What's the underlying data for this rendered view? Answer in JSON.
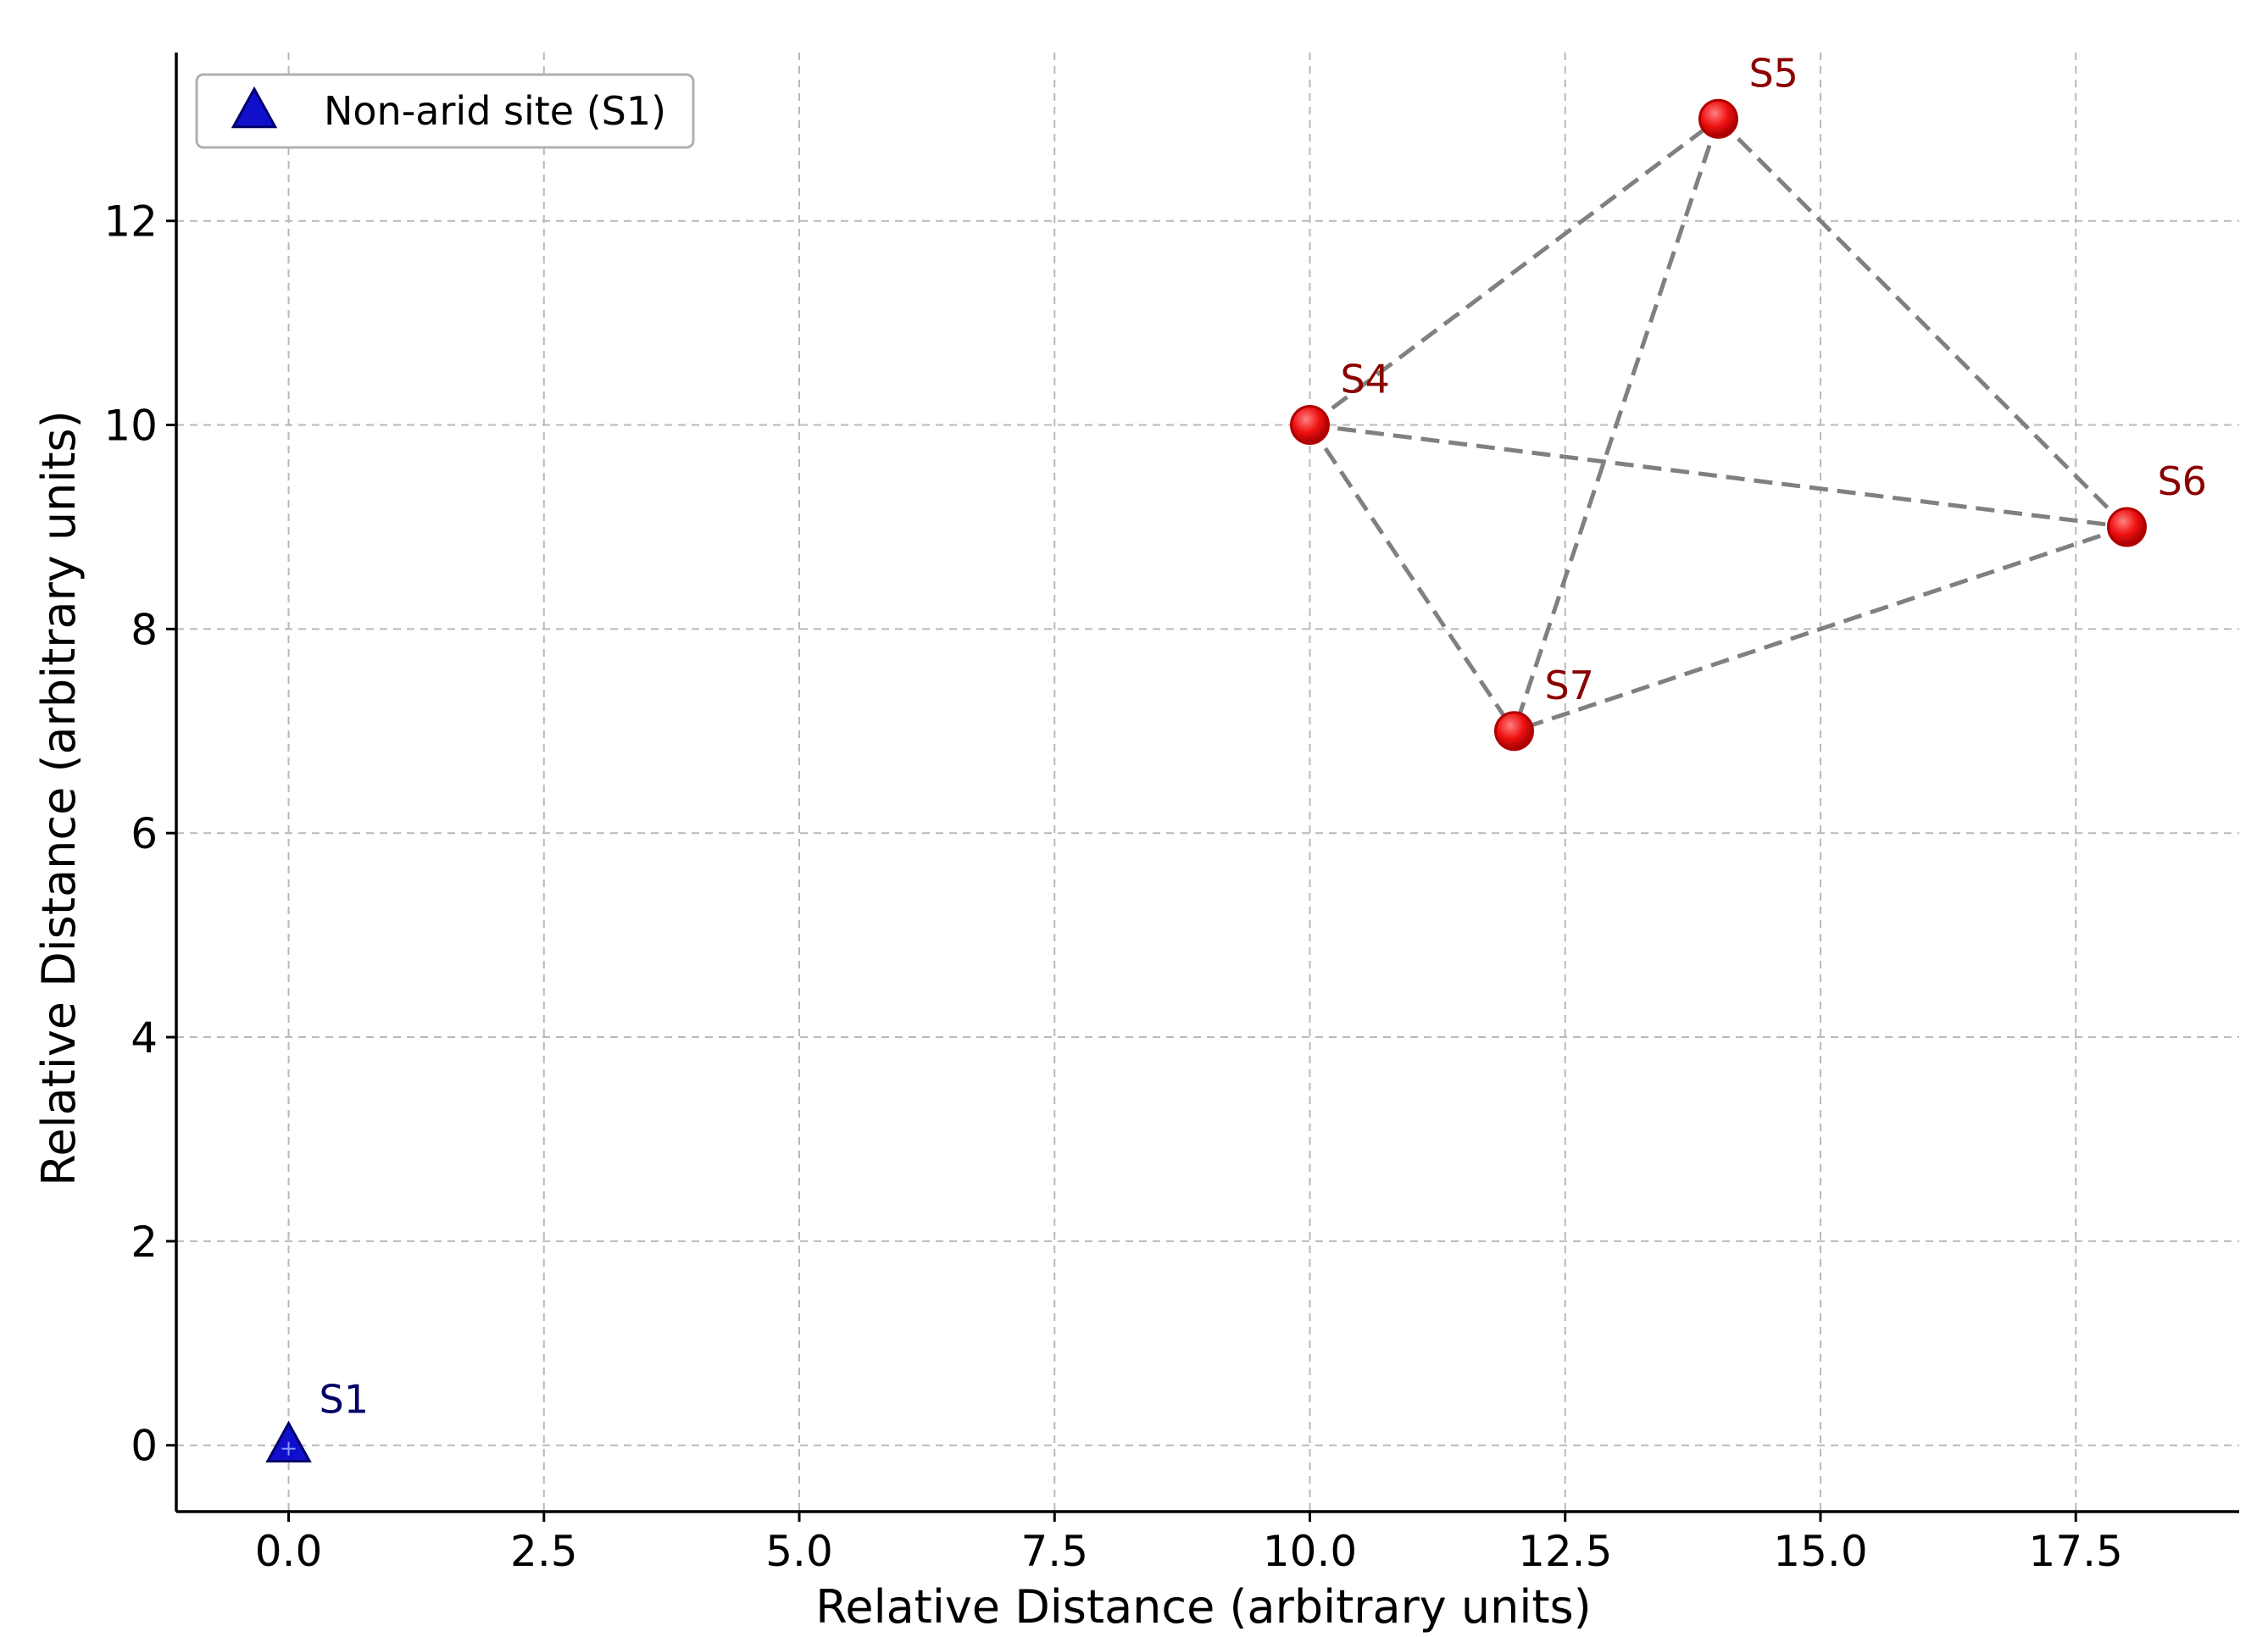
{
  "chart_data": {
    "type": "scatter",
    "title": "",
    "xlabel": "Relative Distance (arbitrary units)",
    "ylabel": "Relative Distance (arbitrary units)",
    "xlim": [
      -1.1,
      19.1
    ],
    "ylim": [
      -0.65,
      13.65
    ],
    "xticks": [
      0.0,
      2.5,
      5.0,
      7.5,
      10.0,
      12.5,
      15.0,
      17.5
    ],
    "xtick_labels": [
      "0.0",
      "2.5",
      "5.0",
      "7.5",
      "10.0",
      "12.5",
      "15.0",
      "17.5"
    ],
    "yticks": [
      0,
      2,
      4,
      6,
      8,
      10,
      12
    ],
    "ytick_labels": [
      "0",
      "2",
      "4",
      "6",
      "8",
      "10",
      "12"
    ],
    "grid": true,
    "legend_position": "top-left",
    "series": [
      {
        "name": "Non-arid site (S1)",
        "marker": "triangle",
        "color": "#1010cc",
        "label_color": "#000066",
        "points": [
          {
            "label": "S1",
            "x": 0,
            "y": 0
          }
        ]
      },
      {
        "marker": "circle",
        "color": "#ee1111",
        "label_color": "#8b0000",
        "points": [
          {
            "label": "S4",
            "x": 10,
            "y": 10
          },
          {
            "label": "S5",
            "x": 14,
            "y": 13
          },
          {
            "label": "S6",
            "x": 18,
            "y": 9
          },
          {
            "label": "S7",
            "x": 12,
            "y": 7
          }
        ]
      }
    ],
    "connections": [
      [
        "S4",
        "S5"
      ],
      [
        "S4",
        "S6"
      ],
      [
        "S4",
        "S7"
      ],
      [
        "S5",
        "S6"
      ],
      [
        "S5",
        "S7"
      ],
      [
        "S6",
        "S7"
      ]
    ],
    "connection_color": "#808080"
  }
}
